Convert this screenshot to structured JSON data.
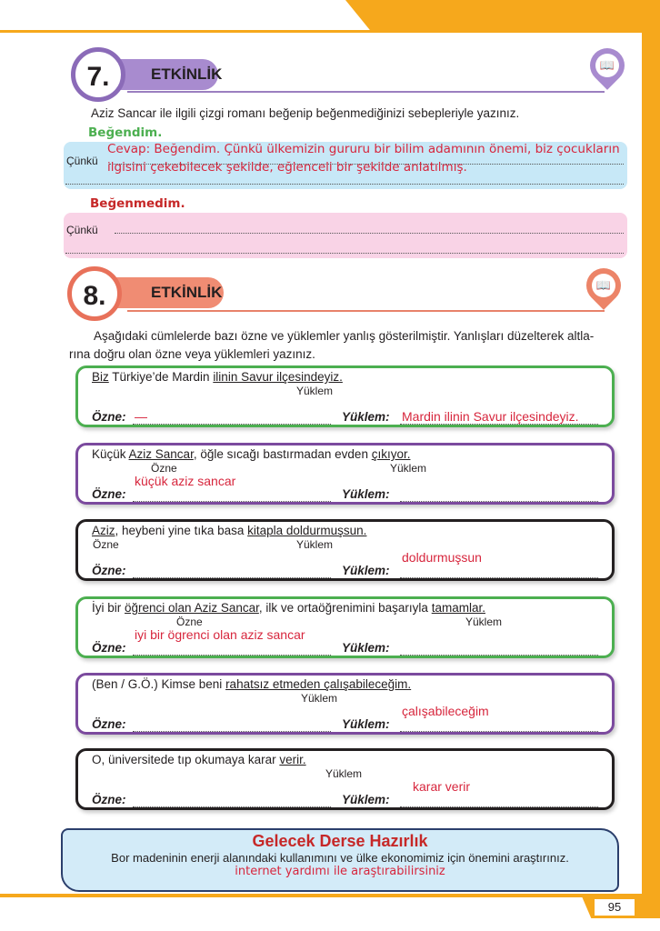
{
  "page_number": "95",
  "activity7": {
    "number": "7.",
    "title": "ETKİNLİK",
    "icon": "book-icon",
    "instruction": "Aziz Sancar ile ilgili  çizgi romanı beğenip beğenmediğinizi sebepleriyle yazınız.",
    "liked_label": "Beğendim.",
    "because": "Çünkü",
    "liked_answer_line1": "Cevap: Beğendim. Çünkü ülkemizin gururu bir bilim adamının önemi, biz çocukların",
    "liked_answer_line2": "ilgisini çekebilecek şekilde, eğlenceli bir şekilde anlatılmış.",
    "disliked_label": "Beğenmedim.",
    "because2": "Çünkü"
  },
  "activity8": {
    "number": "8.",
    "title": "ETKİNLİK",
    "icon": "book-icon",
    "instruction_line1": "Aşağıdaki cümlelerde bazı özne ve yüklemler yanlış gösterilmiştir. Yanlışları düzelterek altla-",
    "instruction_line2": "rına doğru olan özne veya yüklemleri yazınız.",
    "subject_label": "Özne:",
    "predicate_label": "Yüklem:",
    "items": [
      {
        "color": "#4caf50",
        "sentence": [
          {
            "t": "Biz",
            "u": true
          },
          {
            "t": " Türkiye’de Mardin "
          },
          {
            "t": "ilinin Savur ilçesindeyiz.",
            "u": true
          }
        ],
        "hint_subject": "",
        "hint_predicate": "Yüklem",
        "answer_subject": "—",
        "answer_predicate": "Mardin ilinin Savur ilçesindeyiz."
      },
      {
        "color": "#7b4a9e",
        "sentence": [
          {
            "t": "Küçük "
          },
          {
            "t": "Aziz Sancar",
            "u": true
          },
          {
            "t": ", öğle sıcağı bastırmadan evden "
          },
          {
            "t": "çıkıyor.",
            "u": true
          }
        ],
        "hint_subject": "Özne",
        "hint_predicate": "Yüklem",
        "answer_subject": "küçük aziz sancar",
        "answer_predicate": ""
      },
      {
        "color": "#231f20",
        "sentence": [
          {
            "t": "Aziz",
            "u": true
          },
          {
            "t": ", heybeni yine tıka basa "
          },
          {
            "t": "kitapla doldurmuşsun.",
            "u": true
          }
        ],
        "hint_subject": "Özne",
        "hint_predicate": "Yüklem",
        "answer_subject": "",
        "answer_predicate": "doldurmuşsun"
      },
      {
        "color": "#4caf50",
        "sentence": [
          {
            "t": "İyi bir "
          },
          {
            "t": "öğrenci olan Aziz Sancar",
            "u": true
          },
          {
            "t": ", ilk ve ortaöğrenimini başarıyla "
          },
          {
            "t": "tamamlar.",
            "u": true
          }
        ],
        "hint_subject": "Özne",
        "hint_predicate": "Yüklem",
        "answer_subject": "iyi bir ögrenci olan aziz sancar",
        "answer_predicate": ""
      },
      {
        "color": "#7b4a9e",
        "sentence": [
          {
            "t": "(Ben / G.Ö.) Kimse beni "
          },
          {
            "t": "rahatsız etmeden çalışabileceğim.",
            "u": true
          }
        ],
        "hint_subject": "",
        "hint_predicate": "Yüklem",
        "answer_subject": "",
        "answer_predicate": "çalışabileceğim"
      },
      {
        "color": "#231f20",
        "sentence": [
          {
            "t": "O, üniversitede tıp okumaya karar "
          },
          {
            "t": "verir.",
            "u": true
          }
        ],
        "hint_subject": "",
        "hint_predicate": "Yüklem",
        "answer_subject": "",
        "answer_predicate": "karar verir"
      }
    ]
  },
  "homework": {
    "title": "Gelecek Derse Hazırlık",
    "text": "Bor madeninin enerji alanındaki kullanımını ve ülke ekonomimiz için önemini araştırınız.",
    "answer": "internet yardımı ile araştırabilirsiniz"
  }
}
